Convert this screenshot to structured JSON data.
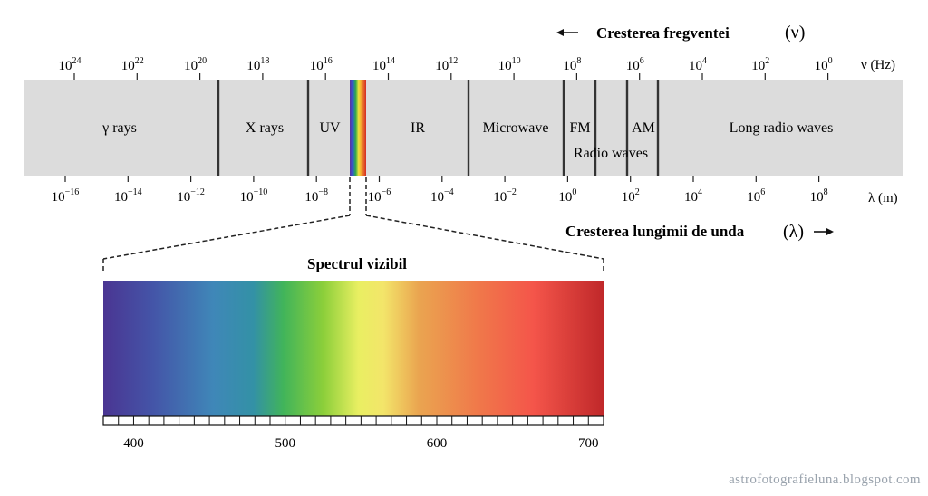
{
  "title_frequency": "Cresterea fregventei",
  "frequency_symbol": "(ν)",
  "frequency_unit": "ν (Hz)",
  "frequency_ticks": [
    {
      "base": "10",
      "exp": "24"
    },
    {
      "base": "10",
      "exp": "22"
    },
    {
      "base": "10",
      "exp": "20"
    },
    {
      "base": "10",
      "exp": "18"
    },
    {
      "base": "10",
      "exp": "16"
    },
    {
      "base": "10",
      "exp": "14"
    },
    {
      "base": "10",
      "exp": "12"
    },
    {
      "base": "10",
      "exp": "10"
    },
    {
      "base": "10",
      "exp": "8"
    },
    {
      "base": "10",
      "exp": "6"
    },
    {
      "base": "10",
      "exp": "4"
    },
    {
      "base": "10",
      "exp": "2"
    },
    {
      "base": "10",
      "exp": "0"
    }
  ],
  "bands": [
    {
      "label": "γ rays"
    },
    {
      "label": "X rays"
    },
    {
      "label": "UV"
    },
    {
      "label": "IR"
    },
    {
      "label": "Microwave"
    },
    {
      "label": "FM"
    },
    {
      "label": "AM"
    },
    {
      "label": "Long radio waves"
    }
  ],
  "radio_waves_label": "Radio waves",
  "wavelength_unit": "λ (m)",
  "wavelength_ticks": [
    {
      "base": "10",
      "exp": "−16"
    },
    {
      "base": "10",
      "exp": "−14"
    },
    {
      "base": "10",
      "exp": "−12"
    },
    {
      "base": "10",
      "exp": "−10"
    },
    {
      "base": "10",
      "exp": "−8"
    },
    {
      "base": "10",
      "exp": "−6"
    },
    {
      "base": "10",
      "exp": "−4"
    },
    {
      "base": "10",
      "exp": "−2"
    },
    {
      "base": "10",
      "exp": "0"
    },
    {
      "base": "10",
      "exp": "2"
    },
    {
      "base": "10",
      "exp": "4"
    },
    {
      "base": "10",
      "exp": "6"
    },
    {
      "base": "10",
      "exp": "8"
    }
  ],
  "title_wavelength": "Cresterea lungimii de unda",
  "wavelength_symbol": "(λ)",
  "visible_title": "Spectrul vizibil",
  "visible_axis": {
    "min": 380,
    "max": 710,
    "labels": [
      400,
      500,
      600,
      700
    ]
  },
  "watermark": "astrofotografieluna.blogspot.com",
  "colors": {
    "band_bg": "#dcdcdc",
    "divider": "#333333",
    "text": "#111111",
    "watermark": "#9aa3ad"
  }
}
